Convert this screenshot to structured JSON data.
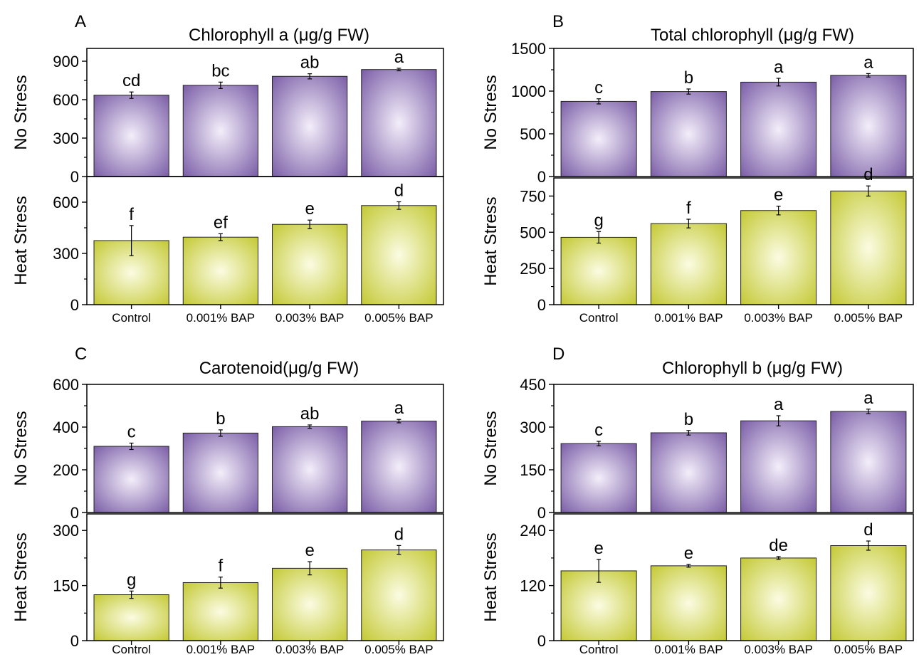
{
  "chart_data": [
    {
      "panel": "A",
      "title": "Chlorophyll a (μg/g FW)",
      "type": "bar",
      "categories": [
        "Control",
        "0.001% BAP",
        "0.003% BAP",
        "0.005% BAP"
      ],
      "top": {
        "ylabel": "No Stress",
        "ylim": [
          0,
          1000
        ],
        "ticks": [
          0,
          300,
          600,
          900
        ],
        "color": "#7b5ea7",
        "values": [
          635,
          712,
          782,
          835
        ],
        "errors": [
          25,
          25,
          20,
          10
        ],
        "letters": [
          "cd",
          "bc",
          "ab",
          "a"
        ]
      },
      "bottom": {
        "ylabel": "Heat Stress",
        "ylim": [
          0,
          750
        ],
        "ticks": [
          0,
          300,
          600
        ],
        "color": "#c4c935",
        "values": [
          375,
          395,
          470,
          580
        ],
        "errors": [
          88,
          20,
          25,
          22
        ],
        "letters": [
          "f",
          "ef",
          "e",
          "d"
        ]
      }
    },
    {
      "panel": "B",
      "title": "Total chlorophyll (μg/g FW)",
      "type": "bar",
      "categories": [
        "Control",
        "0.001% BAP",
        "0.003% BAP",
        "0.005% BAP"
      ],
      "top": {
        "ylabel": "No Stress",
        "ylim": [
          0,
          1500
        ],
        "ticks": [
          0,
          500,
          1000,
          1500
        ],
        "color": "#7b5ea7",
        "values": [
          880,
          995,
          1105,
          1185
        ],
        "errors": [
          30,
          30,
          45,
          20
        ],
        "letters": [
          "c",
          "b",
          "a",
          "a"
        ]
      },
      "bottom": {
        "ylabel": "Heat Stress",
        "ylim": [
          0,
          875
        ],
        "ticks": [
          0,
          250,
          500,
          750
        ],
        "color": "#c4c935",
        "values": [
          465,
          560,
          650,
          785
        ],
        "errors": [
          40,
          30,
          30,
          35
        ],
        "letters": [
          "g",
          "f",
          "e",
          "d"
        ]
      }
    },
    {
      "panel": "C",
      "title": "Carotenoid(μg/g FW)",
      "type": "bar",
      "categories": [
        "Control",
        "0.001% BAP",
        "0.003% BAP",
        "0.005% BAP"
      ],
      "top": {
        "ylabel": "No Stress",
        "ylim": [
          0,
          600
        ],
        "ticks": [
          0,
          200,
          400,
          600
        ],
        "color": "#7b5ea7",
        "values": [
          310,
          372,
          402,
          428
        ],
        "errors": [
          15,
          15,
          8,
          8
        ],
        "letters": [
          "c",
          "b",
          "ab",
          "a"
        ]
      },
      "bottom": {
        "ylabel": "Heat Stress",
        "ylim": [
          0,
          345
        ],
        "ticks": [
          0,
          150,
          300
        ],
        "color": "#c4c935",
        "values": [
          125,
          158,
          197,
          247
        ],
        "errors": [
          10,
          15,
          18,
          12
        ],
        "letters": [
          "g",
          "f",
          "e",
          "d"
        ]
      }
    },
    {
      "panel": "D",
      "title": "Chlorophyll b (μg/g FW)",
      "type": "bar",
      "categories": [
        "Control",
        "0.001% BAP",
        "0.003% BAP",
        "0.005% BAP"
      ],
      "top": {
        "ylabel": "No Stress",
        "ylim": [
          0,
          450
        ],
        "ticks": [
          0,
          150,
          300,
          450
        ],
        "color": "#7b5ea7",
        "values": [
          242,
          280,
          322,
          355
        ],
        "errors": [
          8,
          8,
          18,
          8
        ],
        "letters": [
          "c",
          "b",
          "a",
          "a"
        ]
      },
      "bottom": {
        "ylabel": "Heat Stress",
        "ylim": [
          0,
          276
        ],
        "ticks": [
          0,
          120,
          240
        ],
        "color": "#c4c935",
        "values": [
          152,
          163,
          180,
          207
        ],
        "errors": [
          25,
          3,
          3,
          10
        ],
        "letters": [
          "e",
          "e",
          "de",
          "d"
        ]
      }
    }
  ]
}
